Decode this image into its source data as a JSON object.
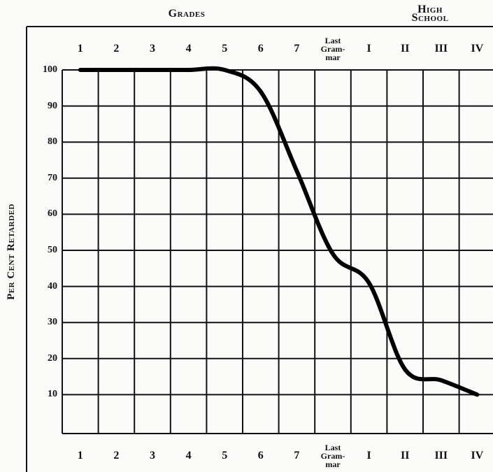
{
  "chart_data": {
    "type": "line",
    "group_labels": [
      "Grades",
      "High School"
    ],
    "ylabel": "Per Cent Retarded",
    "categories": [
      "1",
      "2",
      "3",
      "4",
      "5",
      "6",
      "7",
      "Last\nGram-\nmar",
      "I",
      "II",
      "III",
      "IV"
    ],
    "values": [
      100,
      100,
      100,
      100,
      100,
      94,
      72,
      49,
      41,
      17,
      14,
      10
    ],
    "color": "#000000",
    "ylim": [
      0,
      100
    ],
    "yticks": [
      10,
      20,
      30,
      40,
      50,
      60,
      70,
      80,
      90,
      100
    ],
    "grid": true
  }
}
